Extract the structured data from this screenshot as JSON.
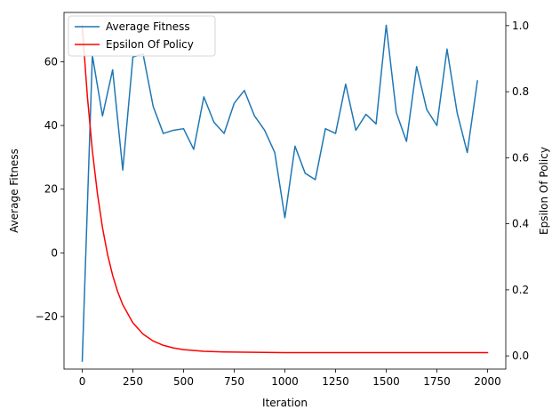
{
  "chart_data": {
    "type": "line",
    "title": "",
    "xlabel": "Iteration",
    "ylabel": "Average Fitness",
    "y2label": "Epsilon Of Policy",
    "xlim": [
      -90,
      2090
    ],
    "ylim": [
      -36.5,
      75.5
    ],
    "y2lim": [
      -0.04,
      1.04
    ],
    "xticks": [
      0,
      250,
      500,
      750,
      1000,
      1250,
      1500,
      1750,
      2000
    ],
    "yticks": [
      -20,
      0,
      20,
      40,
      60
    ],
    "y2ticks": [
      0.0,
      0.2,
      0.4,
      0.6,
      0.8,
      1.0
    ],
    "xtick_labels": [
      "0",
      "250",
      "500",
      "750",
      "1000",
      "1250",
      "1500",
      "1750",
      "2000"
    ],
    "ytick_labels": [
      "−20",
      "0",
      "20",
      "40",
      "60"
    ],
    "y2tick_labels": [
      "0.0",
      "0.2",
      "0.4",
      "0.6",
      "0.8",
      "1.0"
    ],
    "grid": false,
    "legend_position": "top-left",
    "series": [
      {
        "name": "Average Fitness",
        "axis": "left",
        "color": "#1f77b4",
        "x": [
          0,
          50,
          100,
          150,
          200,
          250,
          300,
          350,
          400,
          450,
          500,
          550,
          600,
          650,
          700,
          750,
          800,
          850,
          900,
          950,
          1000,
          1050,
          1100,
          1150,
          1200,
          1250,
          1300,
          1350,
          1400,
          1450,
          1500,
          1550,
          1600,
          1650,
          1700,
          1750,
          1800,
          1850,
          1900,
          1950
        ],
        "y": [
          -34,
          62,
          43,
          57.5,
          26,
          61.5,
          62.5,
          46,
          37.5,
          38.5,
          39,
          32.5,
          49,
          41,
          37.5,
          47,
          51,
          43,
          38.5,
          31.5,
          11,
          33.5,
          25,
          23,
          39,
          37.5,
          53,
          38.5,
          43.5,
          40.5,
          71.5,
          44,
          35,
          58.5,
          45,
          40,
          64,
          44,
          31.5,
          54
        ]
      },
      {
        "name": "Epsilon Of Policy",
        "axis": "right",
        "color": "#ff0000",
        "x": [
          0,
          25,
          50,
          75,
          100,
          125,
          150,
          175,
          200,
          250,
          300,
          350,
          400,
          450,
          500,
          600,
          700,
          800,
          1000,
          1250,
          1500,
          1750,
          2000
        ],
        "y": [
          1.0,
          0.788,
          0.621,
          0.491,
          0.388,
          0.307,
          0.244,
          0.194,
          0.155,
          0.1,
          0.066,
          0.045,
          0.032,
          0.024,
          0.019,
          0.014,
          0.012,
          0.011,
          0.01,
          0.01,
          0.01,
          0.01,
          0.01
        ]
      }
    ]
  }
}
